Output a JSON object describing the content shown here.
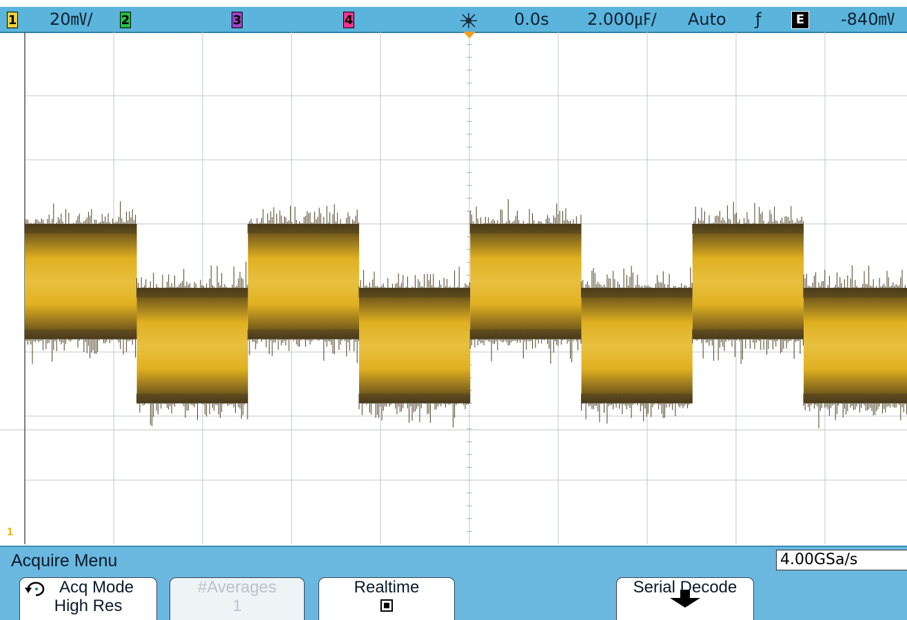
{
  "topbar": {
    "ch1_label": "1",
    "ch1_scale": "20㎷/",
    "ch2_label": "2",
    "ch3_label": "3",
    "ch4_label": "4",
    "time_delay": "0.0s",
    "time_scale": "2.000㎌/",
    "trigger_mode": "Auto",
    "trigger_slope": "ƒ",
    "trigger_source": "E",
    "trigger_level": "-840㎷"
  },
  "screen": {
    "ch1_marker": "1",
    "channel_colors": {
      "ch1": "#e0b020",
      "ch2": "#20c040",
      "ch3": "#a040c8",
      "ch4": "#ff3090"
    },
    "waveform": {
      "type": "noisy square wave",
      "transitions_divisions": [
        1.26,
        2.51,
        3.76,
        5.01,
        6.26,
        7.51,
        8.76,
        10.0
      ],
      "high_center_divisions": 4.1,
      "low_center_divisions": 3.1,
      "band_halfwidth_divisions": 0.9
    }
  },
  "menu": {
    "title": "Acquire Menu",
    "sample_rate": "4.00GSa/s",
    "softkeys": [
      {
        "line1": "Acq Mode",
        "line2": "High Res",
        "icon": "refresh-icon"
      },
      {
        "line1": "#Averages",
        "line2": "1",
        "disabled": true
      },
      {
        "line1": "Realtime",
        "icon": "checkbox-checked"
      },
      {
        "line1": "Serial Decode",
        "icon": "down-arrow-icon"
      }
    ]
  }
}
